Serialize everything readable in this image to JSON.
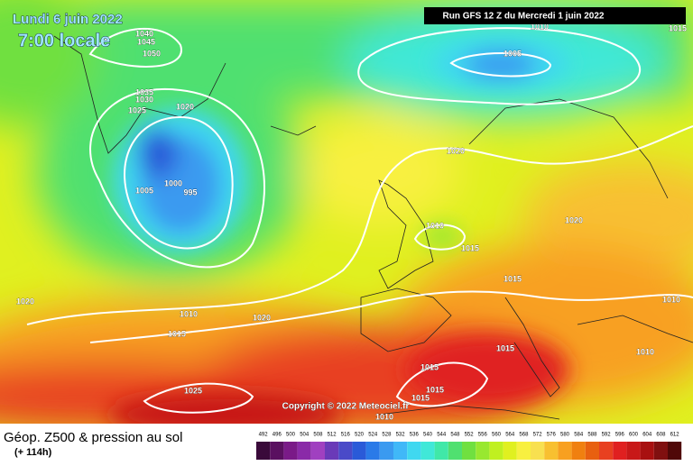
{
  "header": {
    "date": "Lundi 6 juin 2022",
    "time": "7:00 locale",
    "run": "Run GFS 12 Z du Mercredi 1 juin 2022"
  },
  "isobar_labels": [
    1040,
    1045,
    1050,
    1035,
    1030,
    1025,
    1020,
    1000,
    995,
    1005,
    1005,
    1020,
    1010,
    1015,
    1020,
    1015,
    1010,
    1020,
    1010,
    1020,
    1015,
    1015,
    1010,
    1015,
    1015,
    1015,
    1025,
    1010,
    1010,
    1015
  ],
  "copyright": "Copyright © 2022 Meteociel.fr",
  "footer": {
    "title": "Géop. Z500 & pression au sol",
    "lead_time": "(+ 114h)"
  },
  "scale": {
    "labels": [
      492,
      496,
      500,
      504,
      508,
      512,
      516,
      520,
      524,
      528,
      532,
      536,
      540,
      544,
      548,
      552,
      556,
      560,
      564,
      568,
      572,
      576,
      580,
      584,
      588,
      592,
      596,
      600,
      604,
      608,
      612
    ],
    "colors": [
      "#3a0a3a",
      "#5a1060",
      "#7a1a88",
      "#8a2aa8",
      "#a040c0",
      "#6a3ab8",
      "#4a4ac8",
      "#2a5ad8",
      "#2a7ae8",
      "#3a9af0",
      "#40b8f8",
      "#40d8f0",
      "#40e8d8",
      "#40e8a8",
      "#50e070",
      "#70e040",
      "#98e830",
      "#c0f020",
      "#e0f020",
      "#f8f040",
      "#f8e050",
      "#f8c030",
      "#f8a020",
      "#f08010",
      "#e86010",
      "#e84020",
      "#e02020",
      "#c81818",
      "#a81010",
      "#801010",
      "#500808"
    ]
  }
}
